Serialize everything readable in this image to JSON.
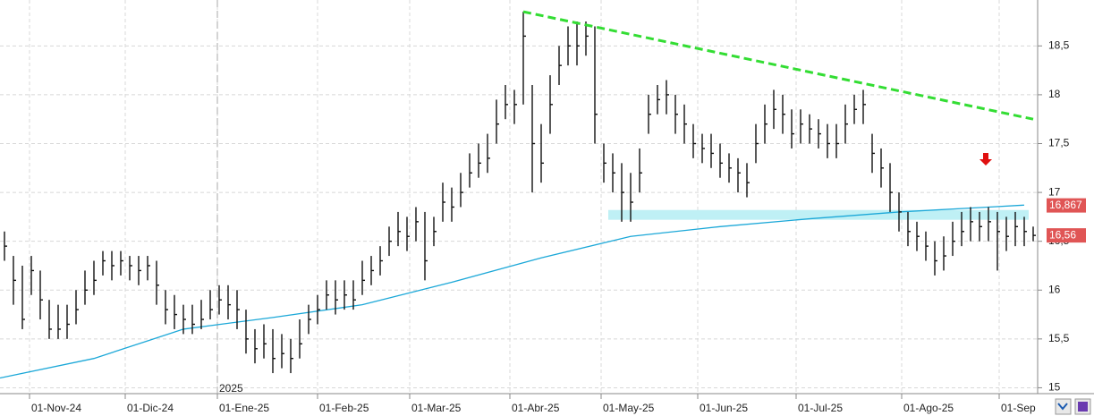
{
  "chart_data": {
    "type": "ohlc",
    "xlim": [
      -0.5,
      115.5
    ],
    "ylim": [
      14.94,
      18.97
    ],
    "xticks": [
      {
        "value": 2.8,
        "label": "01-Nov-24"
      },
      {
        "value": 13.5,
        "label": "01-Dic-24"
      },
      {
        "value": 23.8,
        "label": "01-Ene-25"
      },
      {
        "value": 35,
        "label": "01-Feb-25"
      },
      {
        "value": 45.3,
        "label": "01-Mar-25"
      },
      {
        "value": 56.5,
        "label": "01-Abr-25"
      },
      {
        "value": 66.7,
        "label": "01-May-25"
      },
      {
        "value": 77.5,
        "label": "01-Jun-25"
      },
      {
        "value": 88.5,
        "label": "01-Jul-25"
      },
      {
        "value": 100.3,
        "label": "01-Ago-25"
      },
      {
        "value": 111.2,
        "label": "01-Sep"
      }
    ],
    "yticks": [
      15,
      {
        "value": 15.5,
        "label": "15,5"
      },
      16,
      {
        "value": 16.5,
        "label": "16,5"
      },
      17,
      {
        "value": 17.5,
        "label": "17,5"
      },
      18,
      {
        "value": 18.5,
        "label": "18,5"
      },
      19
    ],
    "grid": true,
    "year_marker": {
      "x": 23.8,
      "label": "2025"
    },
    "bars": {
      "color": "#111111",
      "high": [
        16.6,
        16.35,
        16.25,
        16.35,
        16.2,
        15.9,
        15.85,
        15.85,
        16.0,
        16.2,
        16.3,
        16.4,
        16.4,
        16.4,
        16.35,
        16.35,
        16.35,
        16.3,
        16.0,
        15.95,
        15.85,
        15.85,
        15.9,
        16.0,
        16.05,
        16.05,
        16.0,
        15.8,
        15.6,
        15.65,
        15.6,
        15.55,
        15.5,
        15.7,
        15.85,
        15.95,
        16.1,
        16.1,
        16.1,
        16.1,
        16.3,
        16.35,
        16.45,
        16.65,
        16.8,
        16.75,
        16.85,
        16.8,
        16.75,
        17.1,
        17.05,
        17.2,
        17.4,
        17.5,
        17.6,
        17.95,
        18.1,
        18.05,
        18.85,
        18.1,
        17.7,
        18.2,
        18.5,
        18.7,
        18.75,
        18.75,
        18.7,
        17.5,
        17.4,
        17.3,
        17.2,
        17.45,
        18.0,
        18.1,
        18.15,
        18.0,
        17.9,
        17.7,
        17.6,
        17.6,
        17.5,
        17.4,
        17.35,
        17.3,
        17.7,
        17.9,
        18.05,
        18.0,
        17.85,
        17.85,
        17.8,
        17.75,
        17.7,
        17.7,
        17.9,
        18.0,
        18.05,
        17.6,
        17.45,
        17.3,
        17.0,
        16.8,
        16.7,
        16.6,
        16.5,
        16.55,
        16.7,
        16.8,
        16.85,
        16.8,
        16.85,
        16.8,
        16.75,
        16.8,
        16.75,
        16.65
      ],
      "low": [
        16.3,
        15.85,
        15.6,
        15.95,
        15.7,
        15.5,
        15.5,
        15.5,
        15.65,
        15.85,
        15.95,
        16.15,
        16.1,
        16.15,
        16.1,
        16.05,
        16.1,
        15.85,
        15.65,
        15.6,
        15.55,
        15.55,
        15.6,
        15.7,
        15.75,
        15.7,
        15.6,
        15.35,
        15.25,
        15.3,
        15.15,
        15.2,
        15.15,
        15.3,
        15.55,
        15.65,
        15.8,
        15.75,
        15.8,
        15.8,
        15.95,
        16.05,
        16.15,
        16.35,
        16.45,
        16.4,
        16.5,
        16.1,
        16.45,
        16.7,
        16.7,
        16.85,
        17.05,
        17.15,
        17.2,
        17.5,
        17.75,
        17.7,
        17.9,
        17.0,
        17.1,
        17.6,
        18.1,
        18.3,
        18.3,
        18.4,
        17.5,
        17.1,
        17.0,
        16.7,
        16.7,
        17.0,
        17.6,
        17.8,
        17.8,
        17.6,
        17.5,
        17.35,
        17.3,
        17.25,
        17.15,
        17.1,
        17.0,
        16.95,
        17.3,
        17.5,
        17.65,
        17.6,
        17.45,
        17.5,
        17.5,
        17.45,
        17.35,
        17.35,
        17.5,
        17.7,
        17.7,
        17.2,
        17.05,
        16.8,
        16.6,
        16.45,
        16.4,
        16.3,
        16.15,
        16.2,
        16.35,
        16.45,
        16.5,
        16.5,
        16.5,
        16.2,
        16.4,
        16.45,
        16.45,
        16.5
      ],
      "close": [
        16.45,
        16.1,
        15.7,
        16.2,
        15.9,
        15.6,
        15.6,
        15.65,
        15.8,
        16.0,
        16.1,
        16.3,
        16.25,
        16.3,
        16.25,
        16.2,
        16.25,
        16.05,
        15.8,
        15.75,
        15.7,
        15.65,
        15.7,
        15.8,
        15.9,
        15.85,
        15.8,
        15.5,
        15.4,
        15.45,
        15.3,
        15.35,
        15.3,
        15.45,
        15.7,
        15.8,
        15.95,
        15.9,
        15.95,
        15.9,
        16.1,
        16.2,
        16.3,
        16.5,
        16.6,
        16.55,
        16.7,
        16.3,
        16.6,
        16.9,
        16.85,
        17.0,
        17.2,
        17.3,
        17.35,
        17.7,
        17.9,
        17.9,
        18.6,
        17.5,
        17.3,
        17.9,
        18.3,
        18.5,
        18.5,
        18.6,
        17.8,
        17.3,
        17.2,
        17.0,
        16.9,
        17.2,
        17.8,
        17.95,
        18.0,
        17.8,
        17.7,
        17.5,
        17.45,
        17.4,
        17.3,
        17.25,
        17.2,
        17.1,
        17.5,
        17.7,
        17.85,
        17.8,
        17.6,
        17.7,
        17.65,
        17.6,
        17.5,
        17.5,
        17.7,
        17.85,
        17.9,
        17.4,
        17.25,
        17.0,
        16.8,
        16.6,
        16.55,
        16.45,
        16.3,
        16.35,
        16.5,
        16.6,
        16.7,
        16.65,
        16.7,
        16.6,
        16.55,
        16.65,
        16.6,
        16.56
      ]
    },
    "moving_average": {
      "color": "#1ca8d8",
      "x": [
        -0.5,
        10,
        20,
        30,
        40,
        50,
        60,
        70,
        80,
        90,
        100,
        110,
        114
      ],
      "values": [
        15.1,
        15.3,
        15.6,
        15.72,
        15.85,
        16.08,
        16.33,
        16.55,
        16.65,
        16.73,
        16.8,
        16.85,
        16.87
      ]
    },
    "trendline": {
      "color": "#33dd33",
      "x": [
        58,
        115
      ],
      "values": [
        18.85,
        17.75
      ]
    },
    "support_zone": {
      "color": "#bff0f5",
      "x": [
        67.5,
        114.5
      ],
      "values": [
        16.72,
        16.82
      ]
    },
    "arrow": {
      "color": "#e01010",
      "x": 109.7,
      "value": 17.33
    },
    "price_labels": [
      {
        "value": 16.867,
        "label": "16,867",
        "color": "#e05555"
      },
      {
        "value": 16.56,
        "label": "16,56",
        "color": "#e05555"
      }
    ]
  }
}
